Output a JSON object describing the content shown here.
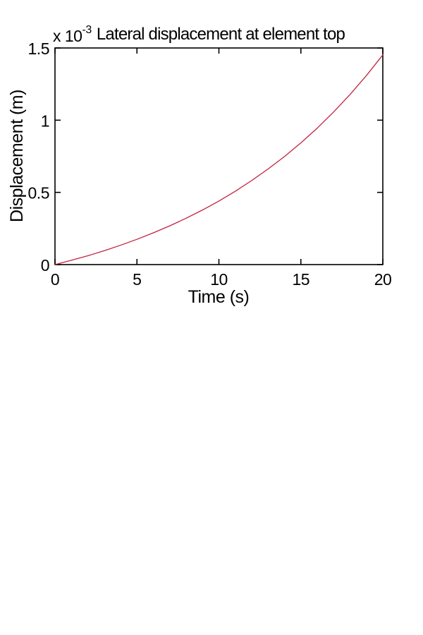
{
  "chart_data": {
    "type": "line",
    "title": "Lateral displacement at element top",
    "xlabel": "Time (s)",
    "ylabel": "Displacement (m)",
    "y_scale_label": {
      "base": "x 10",
      "exponent": "-3"
    },
    "xlim": [
      0,
      20
    ],
    "ylim": [
      0,
      0.0015
    ],
    "ylim_e3": [
      0,
      1.5
    ],
    "grid": false,
    "legend": "none",
    "box": true,
    "axis_color": "#000000",
    "background_color": "#ffffff",
    "x_ticks": {
      "values": [
        0,
        5,
        10,
        15,
        20
      ],
      "labels": [
        "0",
        "5",
        "10",
        "15",
        "20"
      ]
    },
    "y_ticks": {
      "values_e3": [
        0,
        0.5,
        1,
        1.5
      ],
      "labels": [
        "0",
        "0.5",
        "1",
        "1.5"
      ]
    },
    "series": [
      {
        "name": "lateral-displacement",
        "color": "#c2233f",
        "line_width": 1.3,
        "x": [
          0,
          1,
          2,
          3,
          4,
          5,
          6,
          7,
          8,
          9,
          10,
          11,
          12,
          13,
          14,
          15,
          16,
          17,
          18,
          19,
          20
        ],
        "y_e3": [
          0,
          0.03,
          0.061,
          0.096,
          0.134,
          0.175,
          0.22,
          0.268,
          0.321,
          0.378,
          0.44,
          0.508,
          0.582,
          0.662,
          0.748,
          0.843,
          0.945,
          1.057,
          1.178,
          1.309,
          1.452
        ]
      }
    ]
  }
}
